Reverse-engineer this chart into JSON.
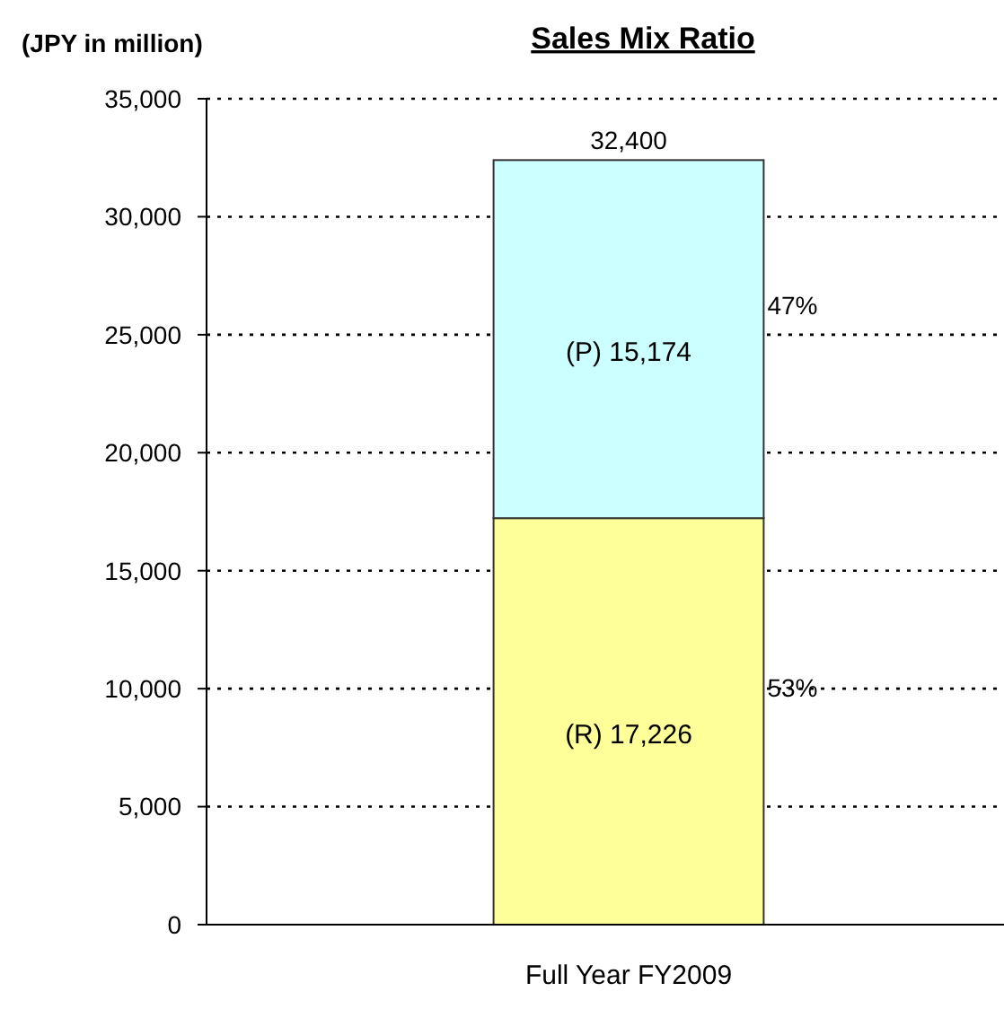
{
  "chart_data": {
    "type": "bar",
    "title": "Sales Mix Ratio",
    "ylabel": "(JPY in million)",
    "categories": [
      "Full Year FY2009"
    ],
    "stacked": true,
    "series": [
      {
        "color": "#ffff99",
        "values": [
          17226
        ],
        "value_labels": [
          "(R) 17,226"
        ]
      },
      {
        "color": "#ccffff",
        "values": [
          15174
        ],
        "value_labels": [
          "(P) 15,174"
        ]
      }
    ],
    "totals": [
      "32,400"
    ],
    "annotations": [
      "53%",
      "47%"
    ],
    "ylim": [
      0,
      35000
    ],
    "yticks": [
      {
        "value": 0,
        "label": "0"
      },
      {
        "value": 5000,
        "label": "5,000"
      },
      {
        "value": 10000,
        "label": "10,000"
      },
      {
        "value": 15000,
        "label": "15,000"
      },
      {
        "value": 20000,
        "label": "20,000"
      },
      {
        "value": 25000,
        "label": "25,000"
      },
      {
        "value": 30000,
        "label": "30,000"
      },
      {
        "value": 35000,
        "label": "35,000"
      }
    ],
    "grid": "y"
  }
}
